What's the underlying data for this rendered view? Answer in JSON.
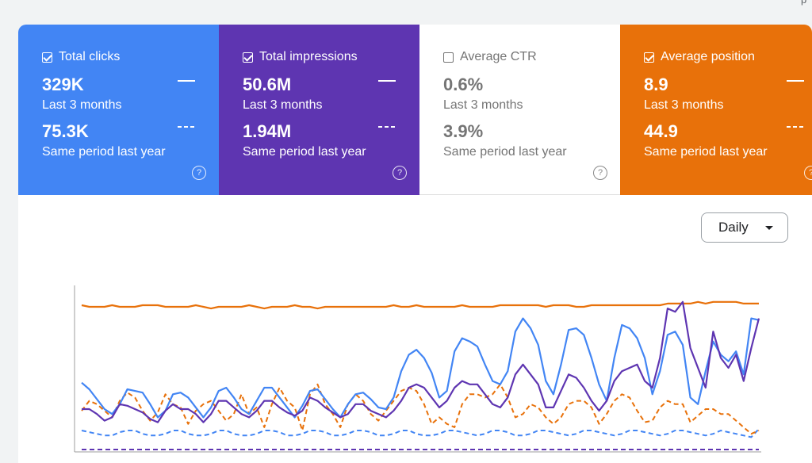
{
  "top_right_text": "p",
  "metrics": [
    {
      "label": "Total clicks",
      "checked": true,
      "value": "329K",
      "period": "Last 3 months",
      "compare_value": "75.3K",
      "compare_period": "Same period last year",
      "color": "#4285f4"
    },
    {
      "label": "Total impressions",
      "checked": true,
      "value": "50.6M",
      "period": "Last 3 months",
      "compare_value": "1.94M",
      "compare_period": "Same period last year",
      "color": "#5e35b1"
    },
    {
      "label": "Average CTR",
      "checked": false,
      "value": "0.6%",
      "period": "Last 3 months",
      "compare_value": "3.9%",
      "compare_period": "Same period last year",
      "color": "#ffffff"
    },
    {
      "label": "Average position",
      "checked": true,
      "value": "8.9",
      "period": "Last 3 months",
      "compare_value": "44.9",
      "compare_period": "Same period last year",
      "color": "#e8710a"
    }
  ],
  "help_icon": "?",
  "granularity": {
    "selected": "Daily"
  },
  "chart_data": {
    "type": "line",
    "xlabel": "",
    "ylabel": "",
    "x": [
      1,
      2,
      3,
      4,
      5,
      6,
      7,
      8,
      9,
      10,
      11,
      12,
      13,
      14,
      15,
      16,
      17,
      18,
      19,
      20,
      21,
      22,
      23,
      24,
      25,
      26,
      27,
      28,
      29,
      30,
      31,
      32,
      33,
      34,
      35,
      36,
      37,
      38,
      39,
      40,
      41,
      42,
      43,
      44,
      45,
      46,
      47,
      48,
      49,
      50,
      51,
      52,
      53,
      54,
      55,
      56,
      57,
      58,
      59,
      60,
      61,
      62,
      63,
      64,
      65,
      66,
      67,
      68,
      69,
      70,
      71,
      72,
      73,
      74,
      75,
      76,
      77,
      78,
      79,
      80,
      81,
      82,
      83,
      84,
      85,
      86,
      87,
      88,
      89,
      90
    ],
    "ylim": [
      0,
      1
    ],
    "grid": false,
    "legend": "none",
    "series": [
      {
        "color": "#e8710a",
        "style": "solid",
        "values": [
          0.88,
          0.87,
          0.87,
          0.87,
          0.88,
          0.87,
          0.87,
          0.87,
          0.88,
          0.88,
          0.88,
          0.87,
          0.87,
          0.87,
          0.87,
          0.88,
          0.87,
          0.86,
          0.87,
          0.87,
          0.87,
          0.87,
          0.88,
          0.87,
          0.86,
          0.87,
          0.87,
          0.87,
          0.88,
          0.87,
          0.87,
          0.86,
          0.87,
          0.87,
          0.87,
          0.87,
          0.87,
          0.87,
          0.87,
          0.87,
          0.87,
          0.88,
          0.87,
          0.87,
          0.88,
          0.87,
          0.87,
          0.87,
          0.87,
          0.87,
          0.88,
          0.87,
          0.87,
          0.87,
          0.87,
          0.88,
          0.88,
          0.88,
          0.88,
          0.88,
          0.88,
          0.87,
          0.88,
          0.88,
          0.88,
          0.87,
          0.87,
          0.88,
          0.88,
          0.88,
          0.88,
          0.88,
          0.88,
          0.88,
          0.88,
          0.88,
          0.88,
          0.89,
          0.89,
          0.89,
          0.89,
          0.9,
          0.89,
          0.9,
          0.9,
          0.9,
          0.9,
          0.89,
          0.89,
          0.89
        ]
      },
      {
        "color": "#4285f4",
        "style": "solid",
        "values": [
          0.41,
          0.37,
          0.31,
          0.25,
          0.22,
          0.28,
          0.37,
          0.36,
          0.35,
          0.28,
          0.2,
          0.24,
          0.34,
          0.35,
          0.32,
          0.26,
          0.2,
          0.26,
          0.36,
          0.38,
          0.32,
          0.25,
          0.22,
          0.3,
          0.38,
          0.38,
          0.32,
          0.26,
          0.2,
          0.27,
          0.36,
          0.37,
          0.31,
          0.25,
          0.2,
          0.28,
          0.34,
          0.35,
          0.31,
          0.26,
          0.25,
          0.32,
          0.48,
          0.58,
          0.61,
          0.56,
          0.47,
          0.32,
          0.36,
          0.6,
          0.68,
          0.66,
          0.63,
          0.52,
          0.42,
          0.4,
          0.48,
          0.72,
          0.8,
          0.74,
          0.64,
          0.42,
          0.34,
          0.52,
          0.73,
          0.74,
          0.7,
          0.56,
          0.4,
          0.3,
          0.56,
          0.76,
          0.74,
          0.68,
          0.56,
          0.34,
          0.48,
          0.7,
          0.72,
          0.64,
          0.32,
          0.28,
          0.48,
          0.66,
          0.58,
          0.54,
          0.6,
          0.46,
          0.8,
          0.79
        ]
      },
      {
        "color": "#5e35b1",
        "style": "solid",
        "values": [
          0.25,
          0.25,
          0.22,
          0.18,
          0.2,
          0.28,
          0.27,
          0.25,
          0.23,
          0.19,
          0.17,
          0.24,
          0.28,
          0.25,
          0.25,
          0.22,
          0.17,
          0.22,
          0.3,
          0.3,
          0.26,
          0.22,
          0.2,
          0.24,
          0.3,
          0.3,
          0.26,
          0.23,
          0.21,
          0.24,
          0.32,
          0.3,
          0.26,
          0.23,
          0.2,
          0.22,
          0.28,
          0.28,
          0.24,
          0.22,
          0.2,
          0.24,
          0.3,
          0.38,
          0.4,
          0.38,
          0.32,
          0.26,
          0.3,
          0.38,
          0.42,
          0.4,
          0.4,
          0.34,
          0.28,
          0.26,
          0.32,
          0.46,
          0.52,
          0.46,
          0.4,
          0.26,
          0.26,
          0.36,
          0.46,
          0.44,
          0.38,
          0.3,
          0.24,
          0.3,
          0.42,
          0.48,
          0.5,
          0.52,
          0.42,
          0.38,
          0.56,
          0.86,
          0.84,
          0.9,
          0.62,
          0.5,
          0.38,
          0.72,
          0.56,
          0.5,
          0.58,
          0.42,
          0.62,
          0.8
        ]
      },
      {
        "color": "#e8710a",
        "style": "dashed",
        "values": [
          0.24,
          0.3,
          0.28,
          0.24,
          0.2,
          0.3,
          0.35,
          0.32,
          0.24,
          0.18,
          0.23,
          0.34,
          0.28,
          0.26,
          0.16,
          0.24,
          0.28,
          0.3,
          0.24,
          0.18,
          0.22,
          0.34,
          0.22,
          0.26,
          0.14,
          0.28,
          0.38,
          0.3,
          0.26,
          0.12,
          0.34,
          0.4,
          0.28,
          0.22,
          0.14,
          0.28,
          0.34,
          0.3,
          0.22,
          0.18,
          0.24,
          0.3,
          0.36,
          0.38,
          0.36,
          0.28,
          0.16,
          0.2,
          0.16,
          0.14,
          0.28,
          0.34,
          0.34,
          0.32,
          0.34,
          0.4,
          0.32,
          0.2,
          0.22,
          0.28,
          0.26,
          0.2,
          0.16,
          0.2,
          0.28,
          0.3,
          0.3,
          0.26,
          0.16,
          0.22,
          0.3,
          0.34,
          0.32,
          0.24,
          0.17,
          0.18,
          0.26,
          0.3,
          0.28,
          0.28,
          0.17,
          0.21,
          0.25,
          0.25,
          0.22,
          0.22,
          0.18,
          0.14,
          0.1,
          0.12
        ]
      },
      {
        "color": "#4285f4",
        "style": "dashed",
        "values": [
          0.12,
          0.11,
          0.1,
          0.09,
          0.09,
          0.11,
          0.12,
          0.12,
          0.1,
          0.09,
          0.09,
          0.1,
          0.12,
          0.12,
          0.1,
          0.09,
          0.09,
          0.1,
          0.12,
          0.12,
          0.1,
          0.09,
          0.09,
          0.1,
          0.12,
          0.12,
          0.11,
          0.09,
          0.09,
          0.1,
          0.12,
          0.12,
          0.11,
          0.09,
          0.09,
          0.1,
          0.12,
          0.12,
          0.11,
          0.09,
          0.09,
          0.1,
          0.12,
          0.12,
          0.1,
          0.09,
          0.09,
          0.1,
          0.12,
          0.12,
          0.11,
          0.1,
          0.09,
          0.1,
          0.12,
          0.12,
          0.11,
          0.09,
          0.09,
          0.1,
          0.12,
          0.12,
          0.11,
          0.1,
          0.09,
          0.1,
          0.12,
          0.12,
          0.11,
          0.1,
          0.09,
          0.1,
          0.12,
          0.12,
          0.11,
          0.1,
          0.09,
          0.1,
          0.12,
          0.12,
          0.11,
          0.1,
          0.09,
          0.1,
          0.12,
          0.11,
          0.1,
          0.09,
          0.08,
          0.13
        ]
      },
      {
        "color": "#5e35b1",
        "style": "dashed",
        "values": [
          0.005,
          0.005,
          0.005,
          0.005,
          0.005,
          0.005,
          0.005,
          0.005,
          0.005,
          0.005,
          0.005,
          0.005,
          0.005,
          0.005,
          0.005,
          0.005,
          0.005,
          0.005,
          0.005,
          0.005,
          0.005,
          0.005,
          0.005,
          0.005,
          0.005,
          0.005,
          0.005,
          0.005,
          0.005,
          0.005,
          0.005,
          0.005,
          0.005,
          0.005,
          0.005,
          0.005,
          0.005,
          0.005,
          0.005,
          0.005,
          0.005,
          0.005,
          0.005,
          0.005,
          0.005,
          0.005,
          0.005,
          0.005,
          0.005,
          0.005,
          0.005,
          0.005,
          0.005,
          0.005,
          0.005,
          0.005,
          0.005,
          0.005,
          0.005,
          0.005,
          0.005,
          0.005,
          0.005,
          0.005,
          0.005,
          0.005,
          0.005,
          0.005,
          0.005,
          0.005,
          0.005,
          0.005,
          0.005,
          0.005,
          0.005,
          0.005,
          0.005,
          0.005,
          0.005,
          0.005,
          0.005,
          0.005,
          0.005,
          0.005,
          0.005,
          0.005,
          0.005,
          0.005,
          0.005,
          0.005
        ]
      }
    ]
  }
}
